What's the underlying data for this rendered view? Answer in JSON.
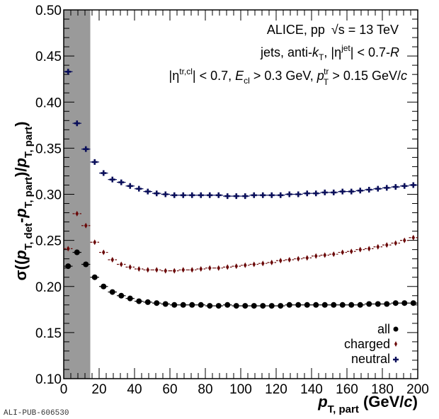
{
  "chart_data": {
    "type": "scatter",
    "title": "",
    "xlabel": "p_T, part (GeV/c)",
    "ylabel": "σ((p_T,det − p_T,part)/p_T,part)",
    "xlim": [
      0,
      200
    ],
    "ylim": [
      0.1,
      0.5
    ],
    "x_ticks": [
      0,
      20,
      40,
      60,
      80,
      100,
      120,
      140,
      160,
      180,
      200
    ],
    "x_tick_labels": [
      "0",
      "20",
      "40",
      "60",
      "80",
      "100",
      "120",
      "140",
      "160",
      "180",
      "200"
    ],
    "y_ticks": [
      0.1,
      0.15,
      0.2,
      0.25,
      0.3,
      0.35,
      0.4,
      0.45,
      0.5
    ],
    "y_tick_labels": [
      "0.10",
      "0.15",
      "0.20",
      "0.25",
      "0.30",
      "0.35",
      "0.40",
      "0.45",
      "0.50"
    ],
    "grid": false,
    "shaded_band": {
      "x_from": 0,
      "x_to": 15,
      "color": "#9a9a9a"
    },
    "bin_width": 5,
    "x": [
      2.5,
      7.5,
      12.5,
      17.5,
      22.5,
      27.5,
      32.5,
      37.5,
      42.5,
      47.5,
      52.5,
      57.5,
      62.5,
      67.5,
      72.5,
      77.5,
      82.5,
      87.5,
      92.5,
      97.5,
      102.5,
      107.5,
      112.5,
      117.5,
      122.5,
      127.5,
      132.5,
      137.5,
      142.5,
      147.5,
      152.5,
      157.5,
      162.5,
      167.5,
      172.5,
      177.5,
      182.5,
      187.5,
      192.5,
      197.5
    ],
    "series": [
      {
        "name": "all",
        "marker": "circle",
        "color": "#000000",
        "values": [
          0.222,
          0.237,
          0.224,
          0.21,
          0.2,
          0.194,
          0.19,
          0.187,
          0.184,
          0.183,
          0.182,
          0.181,
          0.18,
          0.18,
          0.18,
          0.18,
          0.179,
          0.179,
          0.18,
          0.179,
          0.179,
          0.179,
          0.179,
          0.179,
          0.179,
          0.18,
          0.18,
          0.18,
          0.18,
          0.18,
          0.18,
          0.18,
          0.18,
          0.18,
          0.181,
          0.181,
          0.181,
          0.182,
          0.182,
          0.182
        ]
      },
      {
        "name": "charged",
        "marker": "diamond",
        "color": "#6b0a0a",
        "values": [
          0.241,
          0.279,
          0.266,
          0.248,
          0.237,
          0.229,
          0.224,
          0.221,
          0.219,
          0.218,
          0.218,
          0.217,
          0.217,
          0.218,
          0.218,
          0.219,
          0.22,
          0.22,
          0.221,
          0.222,
          0.223,
          0.224,
          0.225,
          0.226,
          0.228,
          0.229,
          0.23,
          0.231,
          0.233,
          0.234,
          0.235,
          0.237,
          0.238,
          0.24,
          0.241,
          0.243,
          0.245,
          0.247,
          0.25,
          0.253
        ]
      },
      {
        "name": "neutral",
        "marker": "cross",
        "color": "#0a0f5a",
        "values": [
          0.433,
          0.377,
          0.349,
          0.335,
          0.323,
          0.316,
          0.313,
          0.309,
          0.306,
          0.303,
          0.301,
          0.3,
          0.299,
          0.299,
          0.299,
          0.299,
          0.299,
          0.299,
          0.298,
          0.298,
          0.298,
          0.299,
          0.299,
          0.299,
          0.299,
          0.3,
          0.3,
          0.301,
          0.301,
          0.302,
          0.302,
          0.303,
          0.303,
          0.304,
          0.305,
          0.306,
          0.307,
          0.308,
          0.309,
          0.31
        ]
      }
    ],
    "legend": {
      "placement": "bottom-right",
      "entries": [
        "all",
        "charged",
        "neutral"
      ]
    },
    "annotations": {
      "line1": {
        "prefix": "ALICE, pp ",
        "sqrt": "√",
        "s": "s",
        "suffix": " = 13 TeV"
      },
      "line2": {
        "a": "jets, anti-",
        "k": "k",
        "ksub": "T",
        "b": ", |η",
        "etasup": "jet",
        "c": "| < 0.7-",
        "R": "R"
      },
      "line3": {
        "a": "|η",
        "etasup": "tr,cl",
        "b": "| < 0.7, ",
        "E": "E",
        "Esub": "cl",
        "c": " > 0.3 GeV, ",
        "p": "p",
        "psub": "T",
        "psup": "tr",
        "d": " > 0.15 GeV/",
        "cc": "c"
      }
    }
  },
  "axis_titles": {
    "x_p": "p",
    "x_sub": "T, part",
    "x_unit_open": " (GeV/",
    "x_unit_c": "c",
    "x_unit_close": ")",
    "y_sigma": "σ((",
    "y_p1": "p",
    "y_sub1": "T, det",
    "y_minus": "-",
    "y_p2": "p",
    "y_sub2": "T, part",
    "y_mid": ")/",
    "y_p3": "p",
    "y_sub3": "T, part",
    "y_close": ")"
  },
  "watermark": "ALI-PUB-606530"
}
